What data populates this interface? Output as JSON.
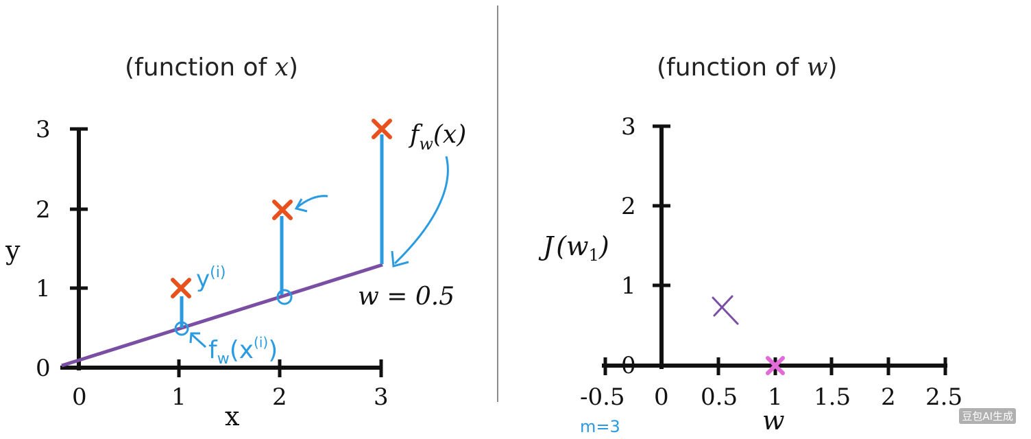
{
  "left_panel": {
    "title_prefix": "(function of ",
    "title_var": "x",
    "title_suffix": ")",
    "x_label": "x",
    "y_label": "y",
    "x_ticks": [
      "0",
      "1",
      "2",
      "3"
    ],
    "y_ticks": [
      "0",
      "1",
      "2",
      "3"
    ],
    "model_label": "f",
    "model_sub": "w",
    "model_arg": "(x)",
    "param_label": "w = 0.5",
    "annot_y": "y",
    "annot_y_sup": "(i)",
    "annot_f": "f",
    "annot_f_sub": "w",
    "annot_f_arg": "(x",
    "annot_f_sup": "(i)",
    "annot_f_close": ")",
    "points_color": "#e8501e",
    "line_color": "#7a4ea3",
    "ink_color": "#2a9be0",
    "data_points": [
      {
        "x": 1,
        "y": 1
      },
      {
        "x": 2,
        "y": 2
      },
      {
        "x": 3,
        "y": 3
      }
    ],
    "w": 0.5
  },
  "right_panel": {
    "title_prefix": "(function of ",
    "title_var": "w",
    "title_suffix": ")",
    "x_label": "w",
    "y_label_J": "J",
    "y_label_arg": "(w",
    "y_label_sub": "1",
    "y_label_close": ")",
    "x_ticks": [
      "-0.5",
      "0",
      "0.5",
      "1",
      "1.5",
      "2",
      "2.5"
    ],
    "y_ticks": [
      "0",
      "1",
      "2",
      "3"
    ],
    "cost_points": [
      {
        "w": 0.55,
        "J": 0.7,
        "color": "#7a4ea3"
      },
      {
        "w": 1.0,
        "J": 0.0,
        "color": "#e36bd7"
      }
    ],
    "annotation_m": "m=3"
  },
  "watermark": "豆包AI生成"
}
